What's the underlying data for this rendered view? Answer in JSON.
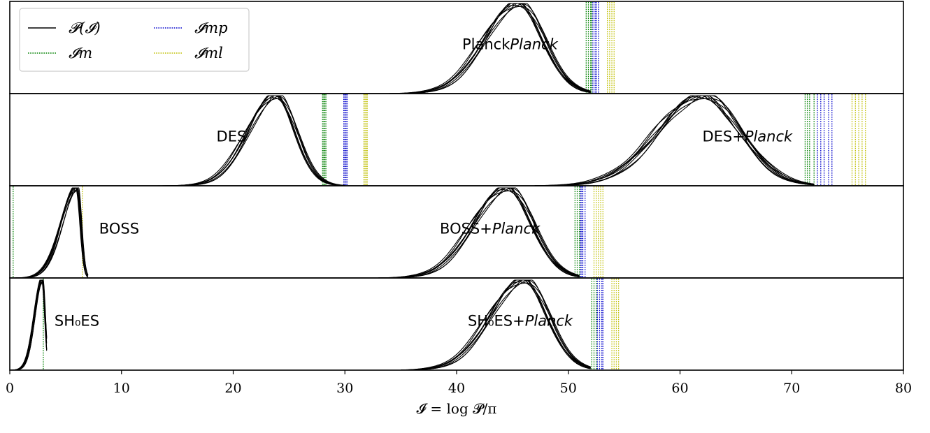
{
  "chart_data": {
    "type": "line",
    "xlim": [
      0,
      80
    ],
    "xticks": [
      0,
      10,
      20,
      30,
      40,
      50,
      60,
      70,
      80
    ],
    "xlabel": "𝓘 = log 𝓟/π",
    "grid": false,
    "legend": {
      "placement": "top-left",
      "entries": [
        {
          "label": "𝓟(𝓘)",
          "style": "solid",
          "color": "#000000"
        },
        {
          "label": "𝓘m",
          "style": "dotted",
          "color": "#008000"
        },
        {
          "label": "𝓘mp",
          "style": "dotted",
          "color": "#0000cc"
        },
        {
          "label": "𝓘ml",
          "style": "dotted",
          "color": "#bfbf00"
        }
      ]
    },
    "colors": {
      "posterior": "#000000",
      "I_m": "#008000",
      "I_mp": "#0000cc",
      "I_ml": "#bfbf00"
    },
    "panels": [
      {
        "distributions": [
          {
            "label": "Planck",
            "label_italic": "Planck",
            "label_x": 40.5,
            "peak": 45.5,
            "sigma_left": 3.0,
            "sigma_right": 2.3,
            "min": 34,
            "max": 52
          }
        ],
        "markers": {
          "I_m": [
            51.6,
            51.8,
            52.0,
            52.1
          ],
          "I_mp": [
            52.2,
            52.4,
            52.5,
            52.7
          ],
          "I_ml": [
            53.5,
            53.7,
            53.9,
            54.1
          ]
        }
      },
      {
        "distributions": [
          {
            "label": "DES",
            "label_italic": "",
            "label_x": 18.5,
            "peak": 23.8,
            "sigma_left": 2.5,
            "sigma_right": 1.8,
            "min": 13,
            "max": 30
          },
          {
            "label": "DES+",
            "label_italic": "Planck",
            "label_x": 62.0,
            "peak": 62.0,
            "sigma_left": 4.0,
            "sigma_right": 3.4,
            "min": 47,
            "max": 72
          }
        ],
        "markers": {
          "I_m": [
            28.0,
            28.1,
            28.2,
            28.3,
            71.2,
            71.4,
            71.6,
            72.0
          ],
          "I_mp": [
            29.9,
            30.0,
            30.1,
            30.2,
            72.3,
            72.6,
            72.9,
            73.3,
            73.6
          ],
          "I_ml": [
            31.7,
            31.8,
            31.9,
            32.0,
            75.4,
            75.7,
            76.0,
            76.3,
            76.6
          ]
        }
      },
      {
        "distributions": [
          {
            "label": "BOSS",
            "label_italic": "",
            "label_x": 8.0,
            "peak": 6.0,
            "sigma_left": 1.4,
            "sigma_right": 0.35,
            "min": 0.5,
            "max": 7.0
          },
          {
            "label": "BOSS+",
            "label_italic": "Planck",
            "label_x": 38.5,
            "peak": 44.5,
            "sigma_left": 3.0,
            "sigma_right": 2.3,
            "min": 33,
            "max": 51
          }
        ],
        "markers": {
          "I_m": [
            0.3,
            50.6,
            50.8,
            51.0
          ],
          "I_mp": [
            51.1,
            51.2,
            51.3,
            51.5
          ],
          "I_ml": [
            6.5,
            52.3,
            52.5,
            52.7,
            52.9,
            53.1
          ]
        }
      },
      {
        "distributions": [
          {
            "label": "SH₀ES",
            "label_italic": "",
            "label_x": 4.0,
            "peak": 2.9,
            "sigma_left": 0.7,
            "sigma_right": 0.25,
            "min": 0.0,
            "max": 3.3
          },
          {
            "label": "SH₀ES+",
            "label_italic": "Planck",
            "label_x": 41.0,
            "peak": 46.0,
            "sigma_left": 3.0,
            "sigma_right": 2.2,
            "min": 35,
            "max": 52
          }
        ],
        "markers": {
          "I_m": [
            3.0,
            52.1,
            52.3,
            52.5
          ],
          "I_mp": [
            52.6,
            52.8,
            53.0,
            53.1
          ],
          "I_ml": [
            53.9,
            54.1,
            54.3,
            54.5
          ]
        }
      }
    ]
  }
}
